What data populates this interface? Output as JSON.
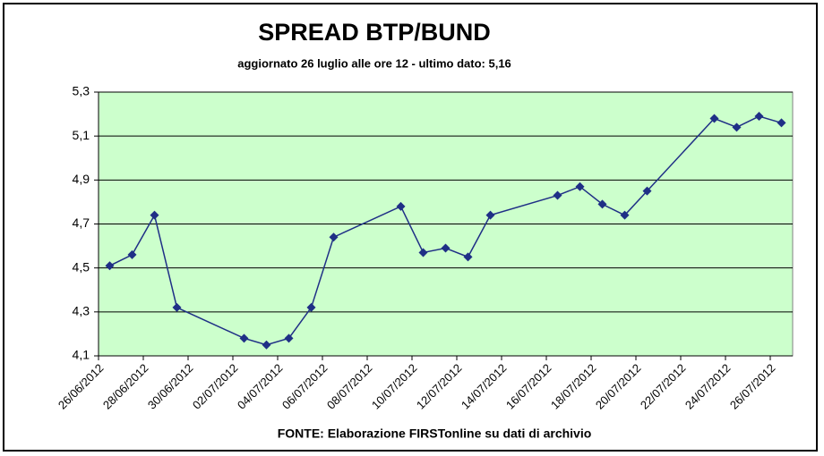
{
  "chart_data": {
    "type": "line",
    "title": "SPREAD BTP/BUND",
    "subtitle": "aggiornato 26 luglio alle ore 12 - ultimo dato: 5,16",
    "source": "FONTE: Elaborazione FIRSTonline su dati di archivio",
    "x": [
      "26/06/2012",
      "27/06/2012",
      "28/06/2012",
      "29/06/2012",
      "02/07/2012",
      "03/07/2012",
      "04/07/2012",
      "05/07/2012",
      "06/07/2012",
      "09/07/2012",
      "10/07/2012",
      "11/07/2012",
      "12/07/2012",
      "13/07/2012",
      "16/07/2012",
      "17/07/2012",
      "18/07/2012",
      "19/07/2012",
      "20/07/2012",
      "23/07/2012",
      "24/07/2012",
      "25/07/2012",
      "26/07/2012"
    ],
    "values": [
      4.51,
      4.56,
      4.74,
      4.32,
      4.18,
      4.15,
      4.18,
      4.32,
      4.64,
      4.78,
      4.57,
      4.59,
      4.55,
      4.74,
      4.83,
      4.87,
      4.79,
      4.74,
      4.85,
      5.18,
      5.14,
      5.19,
      5.16
    ],
    "color": "#1f2f86",
    "plot_background": "#ccffcc",
    "xlim": [
      "26/06/2012",
      "27/07/2012"
    ],
    "xticks": [
      "26/06/2012",
      "28/06/2012",
      "30/06/2012",
      "02/07/2012",
      "04/07/2012",
      "06/07/2012",
      "08/07/2012",
      "10/07/2012",
      "12/07/2012",
      "14/07/2012",
      "16/07/2012",
      "18/07/2012",
      "20/07/2012",
      "22/07/2012",
      "24/07/2012",
      "26/07/2012"
    ],
    "ylim": [
      4.1,
      5.3
    ],
    "yticks": [
      {
        "value": 4.1,
        "label": "4,1"
      },
      {
        "value": 4.3,
        "label": "4,3"
      },
      {
        "value": 4.5,
        "label": "4,5"
      },
      {
        "value": 4.7,
        "label": "4,7"
      },
      {
        "value": 4.9,
        "label": "4,9"
      },
      {
        "value": 5.1,
        "label": "5,1"
      },
      {
        "value": 5.3,
        "label": "5,3"
      }
    ],
    "grid": true
  }
}
